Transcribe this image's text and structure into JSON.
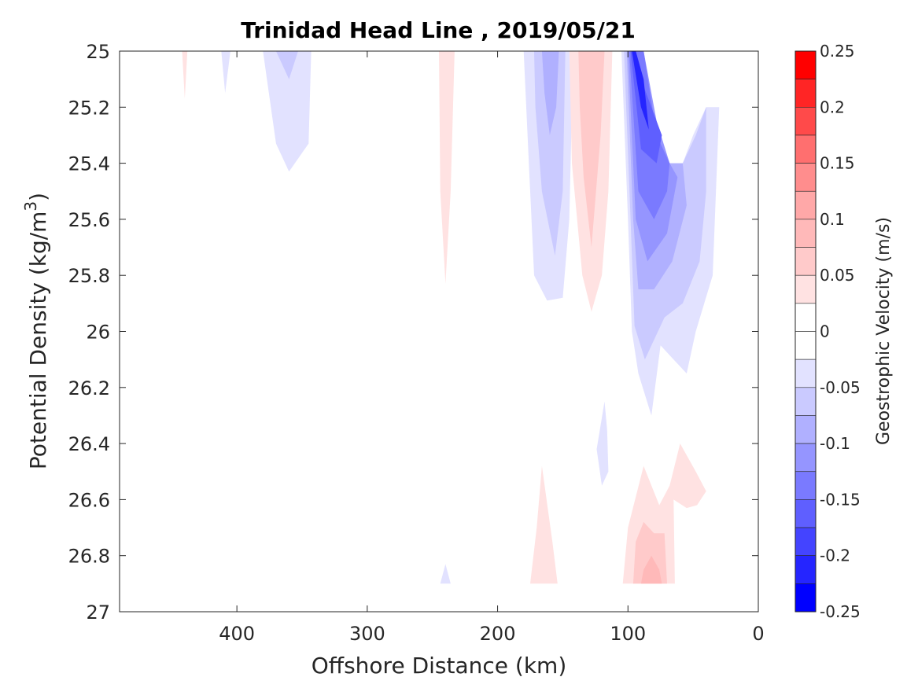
{
  "chart_data": {
    "type": "contour",
    "title": "Trinidad Head Line , 2019/05/21",
    "xlabel": "Offshore Distance (km)",
    "ylabel_main": "Potential Density (kg/m",
    "ylabel_sup": "3",
    "ylabel_close": ")",
    "xlim": [
      490,
      0
    ],
    "x_reversed": true,
    "ylim": [
      25,
      27
    ],
    "y_reversed": true,
    "x_ticks": [
      400,
      300,
      200,
      100,
      0
    ],
    "y_ticks": [
      25,
      25.2,
      25.4,
      25.6,
      25.8,
      26,
      26.2,
      26.4,
      26.6,
      26.8,
      27
    ],
    "y_tick_labels": [
      "25",
      "25.2",
      "25.4",
      "25.6",
      "25.8",
      "26",
      "26.2",
      "26.4",
      "26.6",
      "26.8",
      "27"
    ],
    "colorbar": {
      "label": "Geostrophic Velocity (m/s)",
      "range": [
        -0.25,
        0.25
      ],
      "ticks": [
        0.25,
        0.2,
        0.15,
        0.1,
        0.05,
        0,
        -0.05,
        -0.1,
        -0.15,
        -0.2,
        -0.25
      ],
      "tick_labels": [
        "0.25",
        "0.2",
        "0.15",
        "0.1",
        "0.05",
        "0",
        "-0.05",
        "-0.1",
        "-0.15",
        "-0.2",
        "-0.25"
      ],
      "bands": [
        {
          "range": [
            0.225,
            0.25
          ],
          "color": "#ff0000"
        },
        {
          "range": [
            0.2,
            0.225
          ],
          "color": "#ff2525"
        },
        {
          "range": [
            0.175,
            0.2
          ],
          "color": "#ff4a4a"
        },
        {
          "range": [
            0.15,
            0.175
          ],
          "color": "#ff6f6f"
        },
        {
          "range": [
            0.125,
            0.15
          ],
          "color": "#ff8d8d"
        },
        {
          "range": [
            0.1,
            0.125
          ],
          "color": "#ffa8a8"
        },
        {
          "range": [
            0.075,
            0.1
          ],
          "color": "#ffb9b9"
        },
        {
          "range": [
            0.05,
            0.075
          ],
          "color": "#ffcaca"
        },
        {
          "range": [
            0.025,
            0.05
          ],
          "color": "#ffe2e2"
        },
        {
          "range": [
            0,
            0.025
          ],
          "color": "#ffffff"
        },
        {
          "range": [
            -0.025,
            0
          ],
          "color": "#ffffff"
        },
        {
          "range": [
            -0.05,
            -0.025
          ],
          "color": "#e2e2ff"
        },
        {
          "range": [
            -0.075,
            -0.05
          ],
          "color": "#cacaff"
        },
        {
          "range": [
            -0.1,
            -0.075
          ],
          "color": "#b0b0ff"
        },
        {
          "range": [
            -0.125,
            -0.1
          ],
          "color": "#9595ff"
        },
        {
          "range": [
            -0.15,
            -0.125
          ],
          "color": "#7a7aff"
        },
        {
          "range": [
            -0.175,
            -0.15
          ],
          "color": "#5f5fff"
        },
        {
          "range": [
            -0.2,
            -0.175
          ],
          "color": "#4444ff"
        },
        {
          "range": [
            -0.225,
            -0.2
          ],
          "color": "#2525ff"
        },
        {
          "range": [
            -0.25,
            -0.225
          ],
          "color": "#0000ff"
        }
      ]
    },
    "contours": [
      {
        "name": "pos-440",
        "color": "#ffe2e2",
        "points": [
          [
            442,
            25
          ],
          [
            438,
            25
          ],
          [
            440,
            25.17
          ]
        ]
      },
      {
        "name": "neg-410",
        "color": "#e2e2ff",
        "points": [
          [
            412,
            25
          ],
          [
            405,
            25
          ],
          [
            409,
            25.15
          ]
        ]
      },
      {
        "name": "neg-360",
        "color": "#e2e2ff",
        "points": [
          [
            380,
            25
          ],
          [
            343,
            25
          ],
          [
            345,
            25.33
          ],
          [
            360,
            25.43
          ],
          [
            370,
            25.33
          ],
          [
            377,
            25.1
          ]
        ]
      },
      {
        "name": "neg-360-core",
        "color": "#cacaff",
        "points": [
          [
            370,
            25
          ],
          [
            353,
            25
          ],
          [
            360,
            25.1
          ]
        ]
      },
      {
        "name": "pos-240",
        "color": "#ffe2e2",
        "points": [
          [
            245,
            25
          ],
          [
            233,
            25
          ],
          [
            236,
            25.5
          ],
          [
            240,
            25.83
          ],
          [
            244,
            25.5
          ]
        ]
      },
      {
        "name": "neg-240-bottom",
        "color": "#e2e2ff",
        "points": [
          [
            244,
            26.9
          ],
          [
            236,
            26.9
          ],
          [
            240,
            26.83
          ]
        ]
      },
      {
        "name": "neg-165",
        "color": "#e2e2ff",
        "points": [
          [
            180,
            25
          ],
          [
            142,
            25
          ],
          [
            145,
            25.6
          ],
          [
            150,
            25.88
          ],
          [
            162,
            25.89
          ],
          [
            172,
            25.8
          ],
          [
            176,
            25.4
          ]
        ]
      },
      {
        "name": "neg-165-b",
        "color": "#cacaff",
        "points": [
          [
            172,
            25
          ],
          [
            148,
            25
          ],
          [
            150,
            25.5
          ],
          [
            156,
            25.73
          ],
          [
            166,
            25.5
          ],
          [
            171,
            25.2
          ]
        ]
      },
      {
        "name": "neg-165-c",
        "color": "#b0b0ff",
        "points": [
          [
            166,
            25
          ],
          [
            153,
            25
          ],
          [
            155,
            25.2
          ],
          [
            160,
            25.3
          ],
          [
            164,
            25.15
          ]
        ]
      },
      {
        "name": "pos-130",
        "color": "#ffe2e2",
        "points": [
          [
            145,
            25
          ],
          [
            112,
            25
          ],
          [
            115,
            25.5
          ],
          [
            120,
            25.8
          ],
          [
            128,
            25.93
          ],
          [
            135,
            25.8
          ],
          [
            143,
            25.4
          ]
        ]
      },
      {
        "name": "pos-130-b",
        "color": "#ffcaca",
        "points": [
          [
            138,
            25
          ],
          [
            118,
            25
          ],
          [
            121,
            25.3
          ],
          [
            128,
            25.7
          ],
          [
            134,
            25.45
          ],
          [
            137,
            25.2
          ]
        ]
      },
      {
        "name": "neg-90",
        "color": "#e2e2ff",
        "points": [
          [
            105,
            25
          ],
          [
            100,
            25.6
          ],
          [
            97,
            26.0
          ],
          [
            92,
            26.15
          ],
          [
            82,
            26.3
          ],
          [
            75,
            26.05
          ],
          [
            65,
            26.1
          ],
          [
            55,
            26.15
          ],
          [
            48,
            26
          ],
          [
            35,
            25.8
          ],
          [
            30,
            25.2
          ],
          [
            40,
            25.2
          ],
          [
            50,
            25.3
          ],
          [
            58,
            25.4
          ],
          [
            68,
            25.4
          ],
          [
            78,
            25.3
          ],
          [
            85,
            25.1
          ],
          [
            90,
            25
          ]
        ]
      },
      {
        "name": "neg-90-b",
        "color": "#cacaff",
        "points": [
          [
            103,
            25
          ],
          [
            98,
            25.6
          ],
          [
            95,
            25.98
          ],
          [
            87,
            26.1
          ],
          [
            72,
            25.95
          ],
          [
            58,
            25.9
          ],
          [
            45,
            25.75
          ],
          [
            40,
            25.5
          ],
          [
            40,
            25.2
          ],
          [
            48,
            25.3
          ],
          [
            58,
            25.4
          ],
          [
            70,
            25.4
          ],
          [
            80,
            25.25
          ],
          [
            88,
            25
          ]
        ]
      },
      {
        "name": "neg-90-c",
        "color": "#b0b0ff",
        "points": [
          [
            101,
            25
          ],
          [
            96,
            25.6
          ],
          [
            92,
            25.85
          ],
          [
            80,
            25.85
          ],
          [
            66,
            25.75
          ],
          [
            55,
            25.55
          ],
          [
            58,
            25.4
          ],
          [
            70,
            25.4
          ],
          [
            80,
            25.22
          ],
          [
            90,
            25
          ]
        ]
      },
      {
        "name": "neg-90-d",
        "color": "#9595ff",
        "points": [
          [
            100,
            25
          ],
          [
            94,
            25.6
          ],
          [
            85,
            25.75
          ],
          [
            70,
            25.65
          ],
          [
            62,
            25.45
          ],
          [
            68,
            25.4
          ],
          [
            78,
            25.25
          ],
          [
            88,
            25
          ]
        ]
      },
      {
        "name": "neg-90-e",
        "color": "#7a7aff",
        "points": [
          [
            99,
            25
          ],
          [
            92,
            25.5
          ],
          [
            80,
            25.6
          ],
          [
            70,
            25.5
          ],
          [
            68,
            25.4
          ],
          [
            78,
            25.3
          ],
          [
            88,
            25
          ]
        ]
      },
      {
        "name": "neg-90-f",
        "color": "#5f5fff",
        "points": [
          [
            98,
            25
          ],
          [
            90,
            25.35
          ],
          [
            78,
            25.4
          ],
          [
            74,
            25.3
          ],
          [
            82,
            25.2
          ],
          [
            90,
            25.1
          ],
          [
            94,
            25
          ]
        ]
      },
      {
        "name": "neg-90-g",
        "color": "#2525ff",
        "points": [
          [
            97,
            25
          ],
          [
            90,
            25.2
          ],
          [
            84,
            25.28
          ],
          [
            88,
            25.1
          ],
          [
            94,
            25
          ]
        ]
      },
      {
        "name": "neg-120-mid",
        "color": "#e2e2ff",
        "points": [
          [
            118,
            26.25
          ],
          [
            124,
            26.42
          ],
          [
            120,
            26.55
          ],
          [
            115,
            26.5
          ],
          [
            116,
            26.35
          ]
        ]
      },
      {
        "name": "pos-160-bottom",
        "color": "#ffe2e2",
        "points": [
          [
            175,
            26.9
          ],
          [
            154,
            26.9
          ],
          [
            158,
            26.75
          ],
          [
            166,
            26.48
          ],
          [
            170,
            26.7
          ]
        ]
      },
      {
        "name": "pos-80-bottom",
        "color": "#ffe2e2",
        "points": [
          [
            104,
            26.9
          ],
          [
            64,
            26.9
          ],
          [
            65,
            26.6
          ],
          [
            55,
            26.63
          ],
          [
            47,
            26.62
          ],
          [
            40,
            26.57
          ],
          [
            48,
            26.5
          ],
          [
            60,
            26.4
          ],
          [
            68,
            26.55
          ],
          [
            76,
            26.62
          ],
          [
            88,
            26.48
          ],
          [
            100,
            26.7
          ]
        ]
      },
      {
        "name": "pos-80-b",
        "color": "#ffcaca",
        "points": [
          [
            96,
            26.9
          ],
          [
            70,
            26.9
          ],
          [
            72,
            26.72
          ],
          [
            80,
            26.72
          ],
          [
            88,
            26.68
          ],
          [
            94,
            26.75
          ]
        ]
      },
      {
        "name": "pos-80-c",
        "color": "#ffb9b9",
        "points": [
          [
            90,
            26.9
          ],
          [
            74,
            26.9
          ],
          [
            76,
            26.85
          ],
          [
            82,
            26.8
          ],
          [
            88,
            26.85
          ]
        ]
      }
    ]
  }
}
